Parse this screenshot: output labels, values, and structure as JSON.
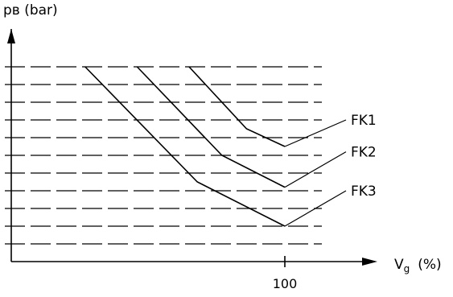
{
  "chart_data": {
    "type": "line",
    "title": "",
    "ylabel": "pв (bar)",
    "xlabel": "Vg (%)",
    "xlabel_main": "V",
    "xlabel_sub": "g",
    "xlabel_unit": "(%)",
    "x_ticks": [
      "100"
    ],
    "xlim": [
      0,
      120
    ],
    "ylim": [
      0,
      11
    ],
    "grid": "horizontal dashed",
    "grid_levels": [
      1,
      2,
      3,
      4,
      5,
      6,
      7,
      8,
      9,
      10,
      11
    ],
    "series": [
      {
        "name": "FK1",
        "x": [
          65,
          86,
          100
        ],
        "y": [
          11,
          7.5,
          6.5
        ]
      },
      {
        "name": "FK2",
        "x": [
          46,
          77,
          100
        ],
        "y": [
          11,
          6,
          4.2
        ]
      },
      {
        "name": "FK3",
        "x": [
          27,
          68,
          100
        ],
        "y": [
          11,
          4.5,
          2
        ]
      }
    ]
  }
}
